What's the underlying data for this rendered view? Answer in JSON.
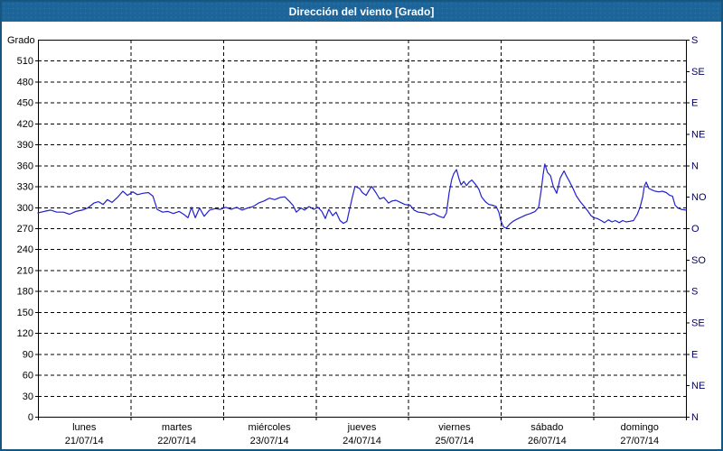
{
  "window": {
    "title": "Dirección del viento [Grado]"
  },
  "colors": {
    "titlebar_bg": "#1d6499",
    "frame_border": "#17567f",
    "title_text": "#ffffff",
    "plot_border": "#000000",
    "grid": "#000000",
    "left_tick_text": "#000000",
    "right_tick_text": "#000066",
    "day_label_text": "#000000",
    "series_line": "#2121cd"
  },
  "chart_data": {
    "type": "line",
    "title": "Dirección del viento [Grado]",
    "ylabel": "Grado",
    "legend": "none",
    "grid": "dashed",
    "y_left": {
      "min": 0,
      "max": 540,
      "tick_step": 30,
      "unit_label": "Grado"
    },
    "y_right": {
      "tick_step": 45,
      "labels_bottom_to_top": [
        "N",
        "NE",
        "E",
        "SE",
        "S",
        "SO",
        "O",
        "NO",
        "N",
        "NE",
        "E",
        "SE",
        "S"
      ]
    },
    "x": {
      "unit": "hours",
      "min": 0,
      "max": 168,
      "day_gridline_step": 24,
      "days": [
        {
          "name": "lunes",
          "date": "21/07/14"
        },
        {
          "name": "martes",
          "date": "22/07/14"
        },
        {
          "name": "miércoles",
          "date": "23/07/14"
        },
        {
          "name": "jueves",
          "date": "24/07/14"
        },
        {
          "name": "viernes",
          "date": "25/07/14"
        },
        {
          "name": "sábado",
          "date": "26/07/14"
        },
        {
          "name": "domingo",
          "date": "27/07/14"
        }
      ]
    },
    "series": [
      {
        "name": "Dirección del viento",
        "color": "#2121cd",
        "points": [
          [
            0,
            292
          ],
          [
            1.6,
            294
          ],
          [
            3.3,
            296
          ],
          [
            4.9,
            293
          ],
          [
            6.6,
            293
          ],
          [
            8.2,
            290
          ],
          [
            9.8,
            294
          ],
          [
            11.5,
            296
          ],
          [
            12.9,
            299
          ],
          [
            14.5,
            306
          ],
          [
            15.7,
            308
          ],
          [
            16.9,
            304
          ],
          [
            18,
            311
          ],
          [
            19.2,
            307
          ],
          [
            20.6,
            314
          ],
          [
            22,
            323
          ],
          [
            23.2,
            317
          ],
          [
            24.6,
            322
          ],
          [
            25.8,
            318
          ],
          [
            27.2,
            320
          ],
          [
            28.6,
            321
          ],
          [
            29.8,
            316
          ],
          [
            30.9,
            297
          ],
          [
            32.3,
            293
          ],
          [
            33.7,
            294
          ],
          [
            35.1,
            291
          ],
          [
            36.6,
            294
          ],
          [
            38,
            289
          ],
          [
            38.9,
            285
          ],
          [
            39.8,
            300
          ],
          [
            40.8,
            285
          ],
          [
            41.9,
            299
          ],
          [
            43.1,
            287
          ],
          [
            44.5,
            296
          ],
          [
            45.9,
            298
          ],
          [
            47.3,
            297
          ],
          [
            48.7,
            300
          ],
          [
            50.1,
            297
          ],
          [
            51.5,
            300
          ],
          [
            52.9,
            296
          ],
          [
            54.4,
            299
          ],
          [
            55.8,
            301
          ],
          [
            57.2,
            306
          ],
          [
            58.6,
            309
          ],
          [
            60,
            313
          ],
          [
            61.4,
            311
          ],
          [
            62.8,
            314
          ],
          [
            64,
            315
          ],
          [
            65.1,
            309
          ],
          [
            66.1,
            303
          ],
          [
            67,
            293
          ],
          [
            68.2,
            299
          ],
          [
            69.1,
            296
          ],
          [
            70.3,
            301
          ],
          [
            71.5,
            297
          ],
          [
            72.6,
            300
          ],
          [
            73.6,
            294
          ],
          [
            74.5,
            284
          ],
          [
            75.4,
            297
          ],
          [
            76.4,
            288
          ],
          [
            77.3,
            293
          ],
          [
            78.3,
            281
          ],
          [
            79.2,
            277
          ],
          [
            80.1,
            280
          ],
          [
            80.8,
            297
          ],
          [
            81.5,
            314
          ],
          [
            82.2,
            330
          ],
          [
            83.4,
            327
          ],
          [
            84.1,
            321
          ],
          [
            85.1,
            317
          ],
          [
            85.8,
            324
          ],
          [
            86.5,
            330
          ],
          [
            87.6,
            321
          ],
          [
            88.6,
            312
          ],
          [
            89.7,
            314
          ],
          [
            90.9,
            306
          ],
          [
            91.8,
            309
          ],
          [
            92.8,
            310
          ],
          [
            94,
            307
          ],
          [
            95.1,
            304
          ],
          [
            96.5,
            303
          ],
          [
            97.5,
            296
          ],
          [
            98.6,
            293
          ],
          [
            100.3,
            292
          ],
          [
            101.5,
            289
          ],
          [
            102.6,
            291
          ],
          [
            104,
            287
          ],
          [
            105.2,
            285
          ],
          [
            105.9,
            292
          ],
          [
            106.6,
            321
          ],
          [
            107.3,
            340
          ],
          [
            107.8,
            348
          ],
          [
            108.5,
            354
          ],
          [
            109.2,
            340
          ],
          [
            109.7,
            332
          ],
          [
            110.4,
            337
          ],
          [
            111.1,
            331
          ],
          [
            111.8,
            336
          ],
          [
            112.5,
            339
          ],
          [
            113.4,
            333
          ],
          [
            114.3,
            326
          ],
          [
            115,
            315
          ],
          [
            116,
            308
          ],
          [
            116.9,
            304
          ],
          [
            117.8,
            303
          ],
          [
            118.8,
            301
          ],
          [
            119.5,
            293
          ],
          [
            120,
            281
          ],
          [
            120.7,
            272
          ],
          [
            121.4,
            270
          ],
          [
            122.3,
            276
          ],
          [
            123.2,
            280
          ],
          [
            124.2,
            283
          ],
          [
            125.4,
            286
          ],
          [
            126.5,
            289
          ],
          [
            127.7,
            291
          ],
          [
            128.9,
            294
          ],
          [
            129.8,
            300
          ],
          [
            130.5,
            326
          ],
          [
            131,
            348
          ],
          [
            131.4,
            362
          ],
          [
            132.1,
            350
          ],
          [
            132.9,
            345
          ],
          [
            133.6,
            330
          ],
          [
            134.5,
            320
          ],
          [
            135.4,
            342
          ],
          [
            136.4,
            352
          ],
          [
            137.1,
            344
          ],
          [
            137.8,
            337
          ],
          [
            138.7,
            327
          ],
          [
            139.6,
            316
          ],
          [
            140.6,
            308
          ],
          [
            141.5,
            302
          ],
          [
            142.5,
            295
          ],
          [
            143.4,
            288
          ],
          [
            144.1,
            285
          ],
          [
            145,
            284
          ],
          [
            146,
            281
          ],
          [
            146.9,
            278
          ],
          [
            147.9,
            282
          ],
          [
            148.8,
            279
          ],
          [
            149.7,
            281
          ],
          [
            150.7,
            278
          ],
          [
            151.6,
            281
          ],
          [
            152.5,
            279
          ],
          [
            153.5,
            280
          ],
          [
            154.4,
            281
          ],
          [
            155.4,
            290
          ],
          [
            156.1,
            300
          ],
          [
            156.8,
            315
          ],
          [
            157.2,
            330
          ],
          [
            157.7,
            336
          ],
          [
            158.4,
            327
          ],
          [
            159.1,
            325
          ],
          [
            160,
            323
          ],
          [
            161,
            322
          ],
          [
            161.9,
            323
          ],
          [
            162.9,
            321
          ],
          [
            163.8,
            317
          ],
          [
            164.5,
            316
          ],
          [
            165.2,
            303
          ],
          [
            165.9,
            299
          ],
          [
            166.8,
            297
          ],
          [
            168,
            296
          ]
        ]
      }
    ]
  }
}
